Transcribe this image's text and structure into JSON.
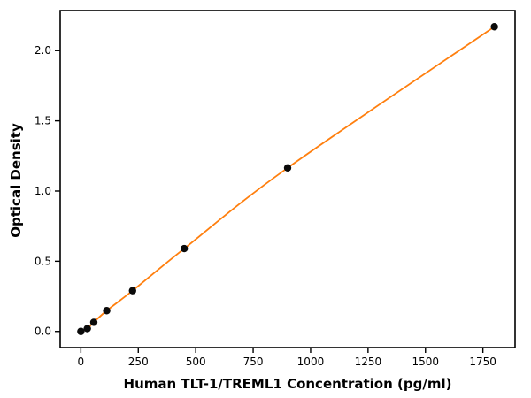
{
  "chart_data": {
    "type": "scatter",
    "title": "",
    "xlabel": "Human TLT-1/TREML1 Concentration (pg/ml)",
    "ylabel": "Optical Density",
    "x": [
      0,
      28.1,
      56.3,
      112.5,
      225,
      450,
      900,
      1800
    ],
    "y": [
      0.0,
      0.02,
      0.065,
      0.148,
      0.29,
      0.59,
      1.165,
      2.17
    ],
    "xlim": [
      -90,
      1890
    ],
    "ylim": [
      -0.115,
      2.285
    ],
    "xticks": [
      0,
      250,
      500,
      750,
      1000,
      1250,
      1500,
      1750
    ],
    "xtick_labels": [
      "0",
      "250",
      "500",
      "750",
      "1000",
      "1250",
      "1500",
      "1750"
    ],
    "yticks": [
      0.0,
      0.5,
      1.0,
      1.5,
      2.0
    ],
    "ytick_labels": [
      "0.0",
      "0.5",
      "1.0",
      "1.5",
      "2.0"
    ],
    "grid": false,
    "legend": null,
    "line_color": "#ff7f0e",
    "marker_color": "#0a0a0a",
    "axis_color": "#000000"
  }
}
